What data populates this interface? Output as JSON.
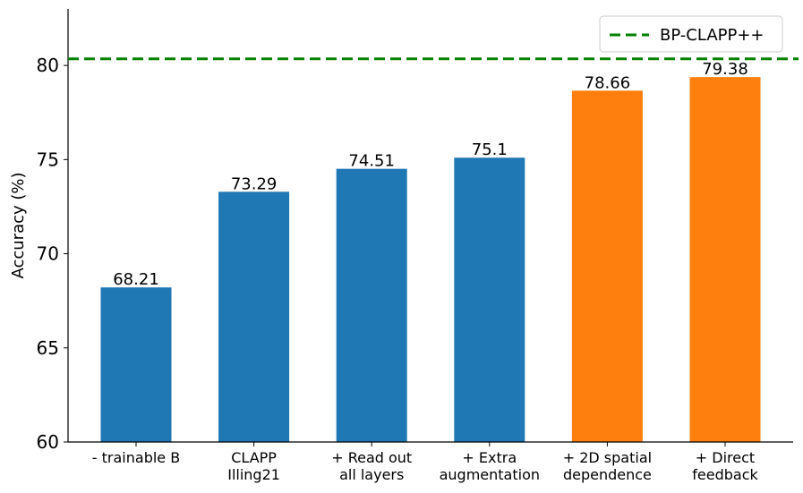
{
  "chart_data": {
    "type": "bar",
    "categories": [
      [
        "- trainable B"
      ],
      [
        "CLAPP",
        "Illing21"
      ],
      [
        "+ Read out",
        "all layers"
      ],
      [
        "+ Extra",
        "augmentation"
      ],
      [
        "+ 2D spatial",
        "dependence"
      ],
      [
        "+ Direct",
        "feedback"
      ]
    ],
    "values": [
      68.21,
      73.29,
      74.51,
      75.1,
      78.66,
      79.38
    ],
    "value_labels": [
      "68.21",
      "73.29",
      "74.51",
      "75.1",
      "78.66",
      "79.38"
    ],
    "bar_colors": [
      "#1f77b4",
      "#1f77b4",
      "#1f77b4",
      "#1f77b4",
      "#ff7f0e",
      "#ff7f0e"
    ],
    "ylabel": "Accuracy (%)",
    "ylim": [
      60,
      83
    ],
    "yticks": [
      60,
      65,
      70,
      75,
      80
    ],
    "reference_line": {
      "name": "BP-CLAPP++",
      "value": 80.35,
      "color": "#008000",
      "style": "dashed"
    },
    "legend_position": "top-right",
    "grid": false
  }
}
